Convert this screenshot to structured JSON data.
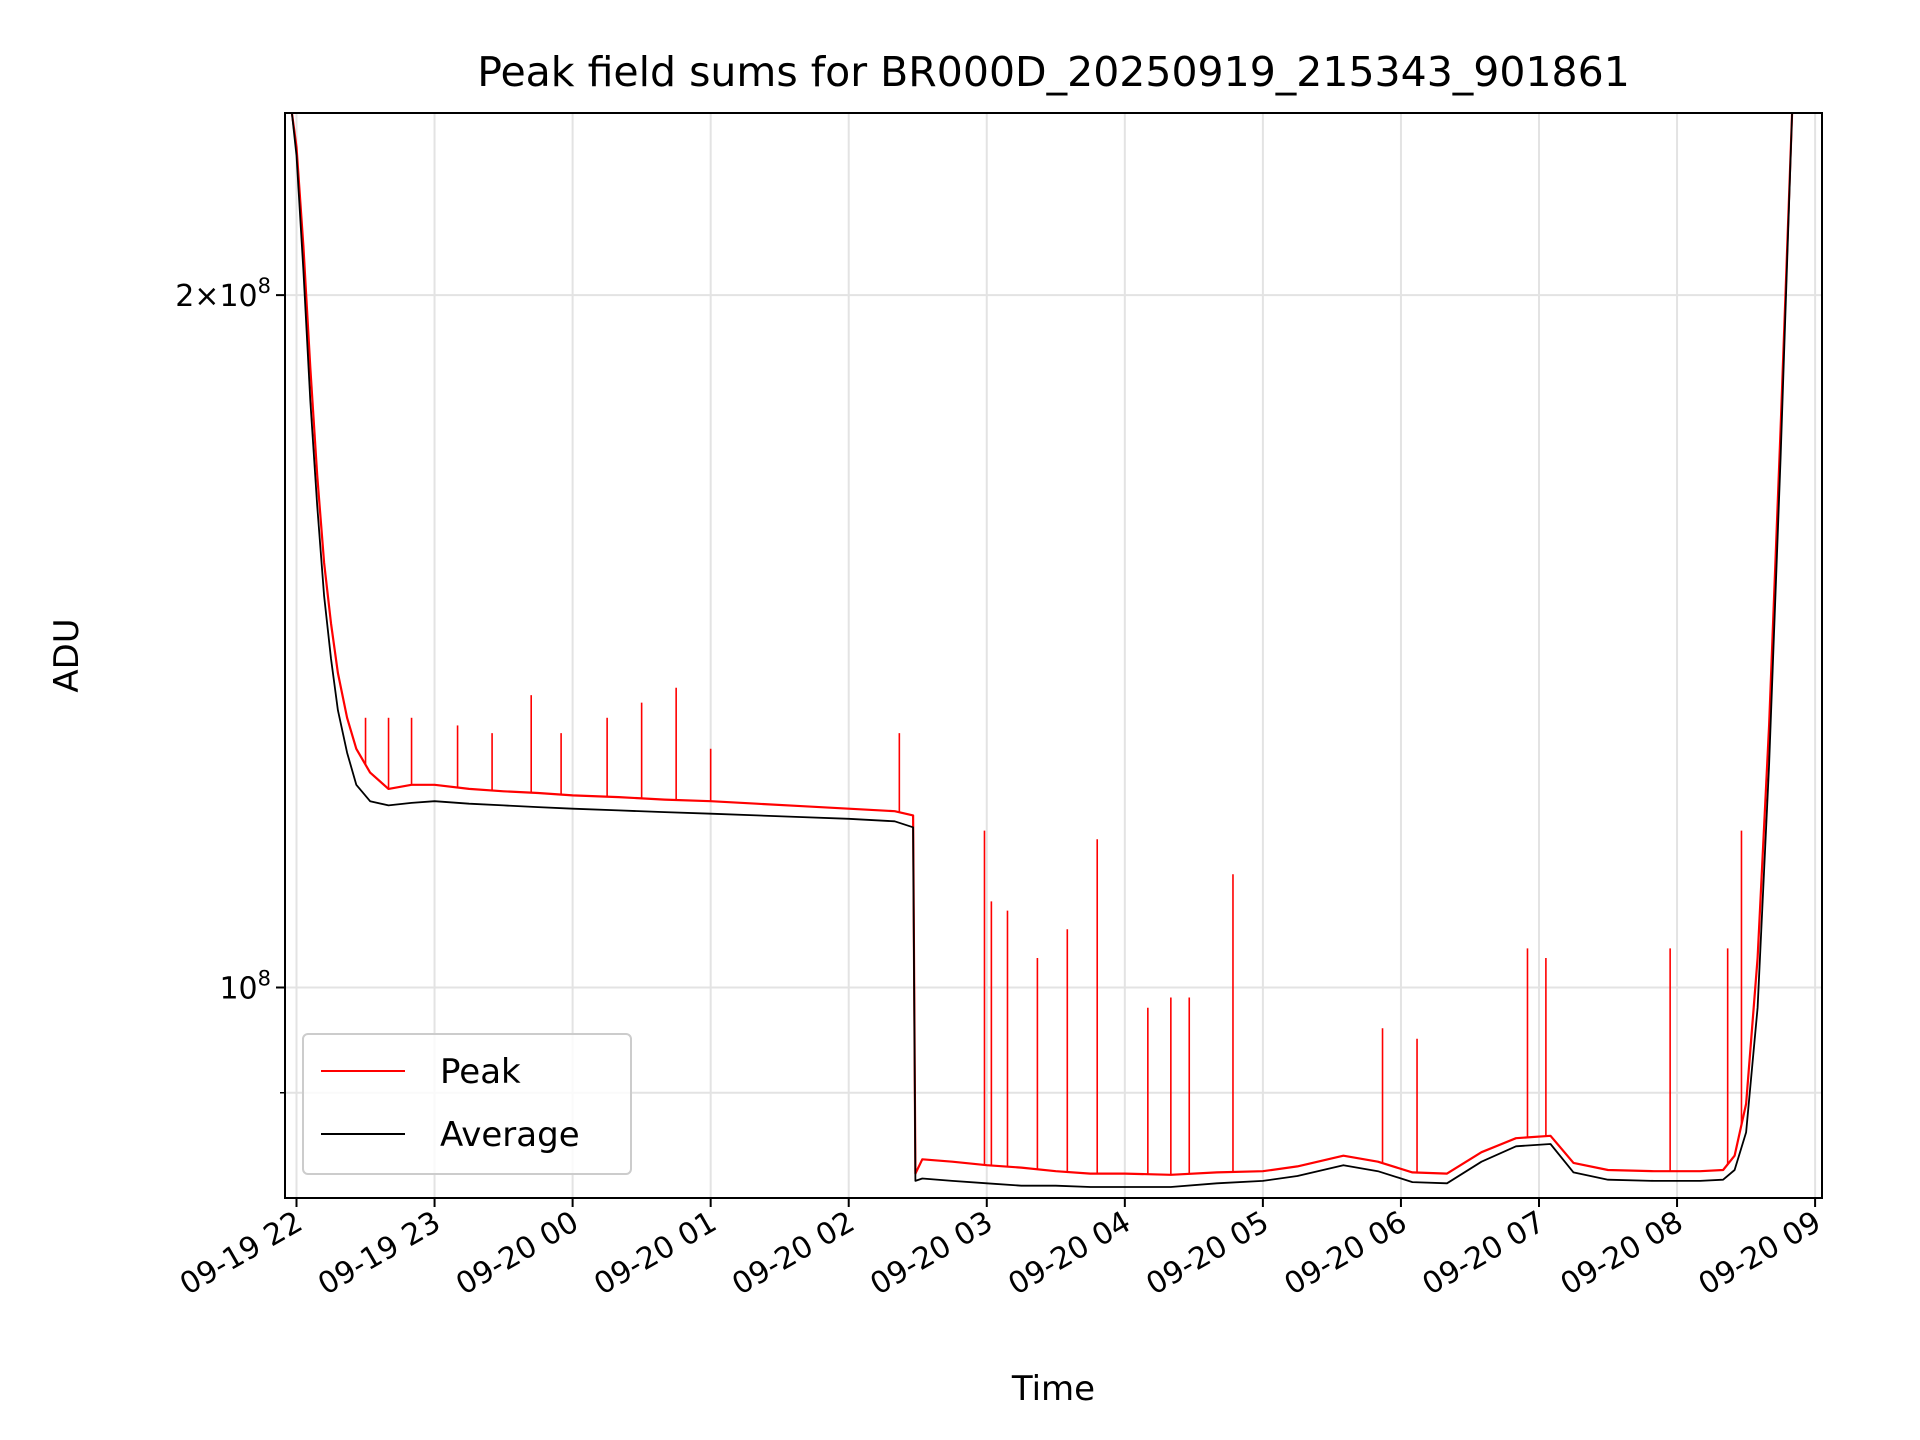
{
  "chart_data": {
    "type": "line",
    "title": "Peak field sums for BR000D_20250919_215343_901861",
    "xlabel": "Time",
    "ylabel": "ADU",
    "x_unit": "date-hour",
    "x_ticks": [
      "09-19 22",
      "09-19 23",
      "09-20 00",
      "09-20 01",
      "09-20 02",
      "09-20 03",
      "09-20 04",
      "09-20 05",
      "09-20 06",
      "09-20 07",
      "09-20 08",
      "09-20 09"
    ],
    "x_range": [
      "2025-09-19 21:55",
      "2025-09-20 09:03"
    ],
    "y_scale": "log",
    "y_ticks": [
      {
        "value": 200000000,
        "mant": "2",
        "times": "×",
        "base": "10",
        "exp": "8"
      },
      {
        "value": 100000000,
        "mant": "",
        "times": "",
        "base": "10",
        "exp": "8"
      }
    ],
    "y_minor_ticks": [
      90000000
    ],
    "ylim": [
      81000000,
      240000000
    ],
    "grid": true,
    "legend_position": "lower-left",
    "series": [
      {
        "name": "Peak",
        "color": "#ff0000",
        "x": [
          "2025-09-19 21:58",
          "2025-09-19 22:00",
          "2025-09-19 22:03",
          "2025-09-19 22:06",
          "2025-09-19 22:09",
          "2025-09-19 22:12",
          "2025-09-19 22:15",
          "2025-09-19 22:18",
          "2025-09-19 22:22",
          "2025-09-19 22:26",
          "2025-09-19 22:32",
          "2025-09-19 22:40",
          "2025-09-19 22:50",
          "2025-09-19 23:00",
          "2025-09-19 23:15",
          "2025-09-19 23:30",
          "2025-09-19 23:45",
          "2025-09-20 00:00",
          "2025-09-20 00:20",
          "2025-09-20 00:40",
          "2025-09-20 01:00",
          "2025-09-20 01:20",
          "2025-09-20 01:40",
          "2025-09-20 02:00",
          "2025-09-20 02:20",
          "2025-09-20 02:28",
          "2025-09-20 02:29",
          "2025-09-20 02:32",
          "2025-09-20 02:45",
          "2025-09-20 03:00",
          "2025-09-20 03:15",
          "2025-09-20 03:30",
          "2025-09-20 03:45",
          "2025-09-20 04:00",
          "2025-09-20 04:20",
          "2025-09-20 04:40",
          "2025-09-20 05:00",
          "2025-09-20 05:15",
          "2025-09-20 05:35",
          "2025-09-20 05:50",
          "2025-09-20 06:05",
          "2025-09-20 06:20",
          "2025-09-20 06:35",
          "2025-09-20 06:50",
          "2025-09-20 07:05",
          "2025-09-20 07:15",
          "2025-09-20 07:30",
          "2025-09-20 07:50",
          "2025-09-20 08:10",
          "2025-09-20 08:20",
          "2025-09-20 08:25",
          "2025-09-20 08:30",
          "2025-09-20 08:35",
          "2025-09-20 08:40",
          "2025-09-20 08:45",
          "2025-09-20 08:50"
        ],
        "values": [
          240000000,
          232000000,
          210000000,
          186000000,
          167000000,
          153000000,
          144000000,
          137000000,
          131000000,
          127000000,
          124000000,
          122000000,
          122500000,
          122500000,
          122000000,
          121700000,
          121500000,
          121200000,
          121000000,
          120700000,
          120500000,
          120200000,
          119900000,
          119600000,
          119300000,
          118800000,
          83000000,
          84200000,
          84000000,
          83700000,
          83500000,
          83200000,
          83000000,
          83000000,
          82900000,
          83100000,
          83200000,
          83600000,
          84500000,
          84000000,
          83100000,
          83000000,
          84800000,
          86000000,
          86200000,
          83900000,
          83300000,
          83200000,
          83200000,
          83300000,
          84500000,
          89000000,
          103000000,
          130000000,
          175000000,
          240000000
        ],
        "spikes": [
          {
            "x": "2025-09-19 22:30",
            "value": 131000000
          },
          {
            "x": "2025-09-19 22:40",
            "value": 131000000
          },
          {
            "x": "2025-09-19 22:50",
            "value": 131000000
          },
          {
            "x": "2025-09-19 23:10",
            "value": 130000000
          },
          {
            "x": "2025-09-19 23:25",
            "value": 129000000
          },
          {
            "x": "2025-09-19 23:42",
            "value": 134000000
          },
          {
            "x": "2025-09-19 23:55",
            "value": 129000000
          },
          {
            "x": "2025-09-20 00:15",
            "value": 131000000
          },
          {
            "x": "2025-09-20 00:30",
            "value": 133000000
          },
          {
            "x": "2025-09-20 00:45",
            "value": 135000000
          },
          {
            "x": "2025-09-20 01:00",
            "value": 127000000
          },
          {
            "x": "2025-09-20 02:22",
            "value": 129000000
          },
          {
            "x": "2025-09-20 02:59",
            "value": 117000000
          },
          {
            "x": "2025-09-20 03:02",
            "value": 109000000
          },
          {
            "x": "2025-09-20 03:09",
            "value": 108000000
          },
          {
            "x": "2025-09-20 03:22",
            "value": 103000000
          },
          {
            "x": "2025-09-20 03:35",
            "value": 106000000
          },
          {
            "x": "2025-09-20 03:48",
            "value": 116000000
          },
          {
            "x": "2025-09-20 04:10",
            "value": 98000000
          },
          {
            "x": "2025-09-20 04:20",
            "value": 99000000
          },
          {
            "x": "2025-09-20 04:28",
            "value": 99000000
          },
          {
            "x": "2025-09-20 04:47",
            "value": 112000000
          },
          {
            "x": "2025-09-20 05:52",
            "value": 96000000
          },
          {
            "x": "2025-09-20 06:07",
            "value": 95000000
          },
          {
            "x": "2025-09-20 06:55",
            "value": 104000000
          },
          {
            "x": "2025-09-20 07:03",
            "value": 103000000
          },
          {
            "x": "2025-09-20 07:57",
            "value": 104000000
          },
          {
            "x": "2025-09-20 08:22",
            "value": 104000000
          },
          {
            "x": "2025-09-20 08:28",
            "value": 117000000
          }
        ]
      },
      {
        "name": "Average",
        "color": "#000000",
        "x": [
          "2025-09-19 21:58",
          "2025-09-19 22:00",
          "2025-09-19 22:03",
          "2025-09-19 22:06",
          "2025-09-19 22:09",
          "2025-09-19 22:12",
          "2025-09-19 22:15",
          "2025-09-19 22:18",
          "2025-09-19 22:22",
          "2025-09-19 22:26",
          "2025-09-19 22:32",
          "2025-09-19 22:40",
          "2025-09-19 22:50",
          "2025-09-19 23:00",
          "2025-09-19 23:15",
          "2025-09-19 23:30",
          "2025-09-19 23:45",
          "2025-09-20 00:00",
          "2025-09-20 00:20",
          "2025-09-20 00:40",
          "2025-09-20 01:00",
          "2025-09-20 01:20",
          "2025-09-20 01:40",
          "2025-09-20 02:00",
          "2025-09-20 02:20",
          "2025-09-20 02:28",
          "2025-09-20 02:29",
          "2025-09-20 02:32",
          "2025-09-20 02:45",
          "2025-09-20 03:00",
          "2025-09-20 03:15",
          "2025-09-20 03:30",
          "2025-09-20 03:45",
          "2025-09-20 04:00",
          "2025-09-20 04:20",
          "2025-09-20 04:40",
          "2025-09-20 05:00",
          "2025-09-20 05:15",
          "2025-09-20 05:35",
          "2025-09-20 05:50",
          "2025-09-20 06:05",
          "2025-09-20 06:20",
          "2025-09-20 06:35",
          "2025-09-20 06:50",
          "2025-09-20 07:05",
          "2025-09-20 07:15",
          "2025-09-20 07:30",
          "2025-09-20 07:50",
          "2025-09-20 08:10",
          "2025-09-20 08:20",
          "2025-09-20 08:25",
          "2025-09-20 08:30",
          "2025-09-20 08:35",
          "2025-09-20 08:40",
          "2025-09-20 08:45",
          "2025-09-20 08:50"
        ],
        "values": [
          240000000,
          230000000,
          205000000,
          180000000,
          162000000,
          148000000,
          139000000,
          132000000,
          126500000,
          122500000,
          120500000,
          120000000,
          120300000,
          120500000,
          120200000,
          120000000,
          119800000,
          119600000,
          119400000,
          119200000,
          119000000,
          118800000,
          118600000,
          118400000,
          118100000,
          117400000,
          82400000,
          82600000,
          82400000,
          82200000,
          82000000,
          82000000,
          81900000,
          81900000,
          81900000,
          82200000,
          82400000,
          82800000,
          83700000,
          83200000,
          82300000,
          82200000,
          84000000,
          85300000,
          85500000,
          83100000,
          82500000,
          82400000,
          82400000,
          82500000,
          83300000,
          86500000,
          98000000,
          125000000,
          170000000,
          240000000
        ]
      }
    ]
  }
}
